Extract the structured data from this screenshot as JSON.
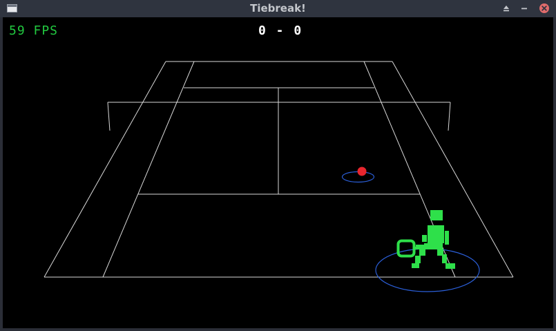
{
  "window": {
    "title": "Tiebreak!",
    "icons": {
      "app": "window-app-icon",
      "shade": "eject-triangle-icon",
      "minimize": "minimize-dash-icon",
      "close": "close-x-icon"
    },
    "colors": {
      "titlebar": "#2f343f",
      "title_text": "#c4c7cc",
      "close_button": "#e06c6c"
    }
  },
  "hud": {
    "fps": "59 FPS",
    "score": "0 - 0"
  },
  "game": {
    "colors": {
      "background": "#000000",
      "court_lines": "#d9d9d9",
      "player": "#2ee04a",
      "ball": "#e8262e",
      "shadow_ring": "#2b5fd9",
      "hud_text": "#22c940",
      "score_text": "#ffffff"
    }
  }
}
